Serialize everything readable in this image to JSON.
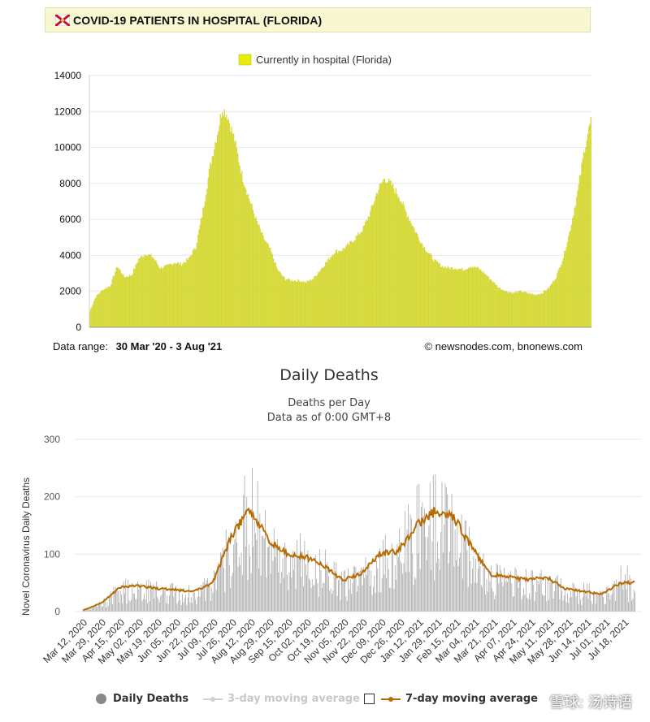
{
  "panel1": {
    "title": "COVID-19 PATIENTS IN HOSPITAL (FLORIDA)",
    "flag_icon": "florida-flag-icon",
    "date_range_label": "Data range:",
    "date_range_value": "30 Mar '20  -  3 Aug '21",
    "credit": "© newsnodes.com, bnonews.com",
    "bar_color": "#d8dc2a"
  },
  "panel2": {
    "title": "Daily Deaths",
    "subtitle1": "Deaths per Day",
    "subtitle2": "Data as of 0:00 GMT+8",
    "ylabel": "Novel Coronavirus Daily Deaths",
    "legend": {
      "daily": "Daily Deaths",
      "ma3": "3-day moving average",
      "ma7": "7-day moving average"
    },
    "watermark": "雪球: 汤诗语",
    "bar_color": "#a8a8a8",
    "line_color": "#b86b00"
  },
  "chart_data": [
    {
      "type": "bar",
      "legend": [
        "Currently in hospital (Florida)"
      ],
      "ylim": [
        0,
        14000
      ],
      "yticks": [
        0,
        2000,
        4000,
        6000,
        8000,
        10000,
        12000,
        14000
      ],
      "grid": true,
      "legend_position": "top-center",
      "x_start": "2020-03-30",
      "x_end": "2021-08-03",
      "series": [
        {
          "name": "Currently in hospital (Florida)",
          "points": [
            [
              "2020-03-30",
              900
            ],
            [
              "2020-04-05",
              1700
            ],
            [
              "2020-04-12",
              2100
            ],
            [
              "2020-04-19",
              2300
            ],
            [
              "2020-04-26",
              3400
            ],
            [
              "2020-05-03",
              2800
            ],
            [
              "2020-05-10",
              2900
            ],
            [
              "2020-05-17",
              3800
            ],
            [
              "2020-05-24",
              4100
            ],
            [
              "2020-05-31",
              3900
            ],
            [
              "2020-06-07",
              3300
            ],
            [
              "2020-06-14",
              3400
            ],
            [
              "2020-06-21",
              3600
            ],
            [
              "2020-06-28",
              3500
            ],
            [
              "2020-07-05",
              3800
            ],
            [
              "2020-07-12",
              4500
            ],
            [
              "2020-07-19",
              6500
            ],
            [
              "2020-07-26",
              9000
            ],
            [
              "2020-08-02",
              10800
            ],
            [
              "2020-08-07",
              12200
            ],
            [
              "2020-08-12",
              11800
            ],
            [
              "2020-08-19",
              10400
            ],
            [
              "2020-08-26",
              8500
            ],
            [
              "2020-09-02",
              7200
            ],
            [
              "2020-09-09",
              6000
            ],
            [
              "2020-09-16",
              5000
            ],
            [
              "2020-09-23",
              4300
            ],
            [
              "2020-09-30",
              3200
            ],
            [
              "2020-10-07",
              2700
            ],
            [
              "2020-10-14",
              2600
            ],
            [
              "2020-10-21",
              2600
            ],
            [
              "2020-10-28",
              2500
            ],
            [
              "2020-11-04",
              2700
            ],
            [
              "2020-11-11",
              3200
            ],
            [
              "2020-11-18",
              3700
            ],
            [
              "2020-11-25",
              4200
            ],
            [
              "2020-12-02",
              4300
            ],
            [
              "2020-12-09",
              4600
            ],
            [
              "2020-12-16",
              5000
            ],
            [
              "2020-12-23",
              5500
            ],
            [
              "2020-12-30",
              6400
            ],
            [
              "2021-01-06",
              7600
            ],
            [
              "2021-01-13",
              8300
            ],
            [
              "2021-01-20",
              7900
            ],
            [
              "2021-01-27",
              7300
            ],
            [
              "2021-02-03",
              6400
            ],
            [
              "2021-02-10",
              5600
            ],
            [
              "2021-02-17",
              4800
            ],
            [
              "2021-02-24",
              4200
            ],
            [
              "2021-03-03",
              3700
            ],
            [
              "2021-03-10",
              3400
            ],
            [
              "2021-03-17",
              3300
            ],
            [
              "2021-03-24",
              3300
            ],
            [
              "2021-03-31",
              3200
            ],
            [
              "2021-04-07",
              3400
            ],
            [
              "2021-04-14",
              3300
            ],
            [
              "2021-04-21",
              3000
            ],
            [
              "2021-04-28",
              2600
            ],
            [
              "2021-05-05",
              2200
            ],
            [
              "2021-05-12",
              2000
            ],
            [
              "2021-05-19",
              1900
            ],
            [
              "2021-05-26",
              2000
            ],
            [
              "2021-06-02",
              1900
            ],
            [
              "2021-06-09",
              1800
            ],
            [
              "2021-06-16",
              1900
            ],
            [
              "2021-06-23",
              2200
            ],
            [
              "2021-06-30",
              2800
            ],
            [
              "2021-07-07",
              3900
            ],
            [
              "2021-07-14",
              5500
            ],
            [
              "2021-07-21",
              7500
            ],
            [
              "2021-07-28",
              10000
            ],
            [
              "2021-08-03",
              11500
            ]
          ]
        }
      ]
    },
    {
      "type": "bar",
      "title": "Daily Deaths",
      "subtitle": "Deaths per Day",
      "ylabel": "Novel Coronavirus Daily Deaths",
      "ylim": [
        0,
        300
      ],
      "yticks": [
        0,
        100,
        200,
        300
      ],
      "grid": true,
      "legend_position": "bottom",
      "categories": [
        "Mar 12, 2020",
        "Mar 29, 2020",
        "Apr 15, 2020",
        "May 02, 2020",
        "May 19, 2020",
        "Jun 05, 2020",
        "Jun 22, 2020",
        "Jul 09, 2020",
        "Jul 26, 2020",
        "Aug 12, 2020",
        "Aug 29, 2020",
        "Sep 15, 2020",
        "Oct 02, 2020",
        "Oct 19, 2020",
        "Nov 05, 2020",
        "Nov 22, 2020",
        "Dec 09, 2020",
        "Dec 26, 2020",
        "Jan 12, 2021",
        "Jan 29, 2021",
        "Feb 15, 2021",
        "Mar 04, 2021",
        "Mar 21, 2021",
        "Apr 07, 2021",
        "Apr 24, 2021",
        "May 11, 2021",
        "May 28, 2021",
        "Jun 14, 2021",
        "Jul 01, 2021",
        "Jul 18, 2021"
      ],
      "series": [
        {
          "name": "7-day moving average",
          "x": [
            "Mar 12, 2020",
            "Mar 29, 2020",
            "Apr 15, 2020",
            "May 02, 2020",
            "May 19, 2020",
            "Jun 05, 2020",
            "Jun 22, 2020",
            "Jul 09, 2020",
            "Jul 26, 2020",
            "Aug 12, 2020",
            "Aug 29, 2020",
            "Sep 15, 2020",
            "Oct 02, 2020",
            "Oct 19, 2020",
            "Nov 05, 2020",
            "Nov 22, 2020",
            "Dec 09, 2020",
            "Dec 26, 2020",
            "Jan 12, 2021",
            "Jan 29, 2021",
            "Feb 15, 2021",
            "Mar 04, 2021",
            "Mar 21, 2021",
            "Apr 07, 2021",
            "Apr 24, 2021",
            "May 11, 2021",
            "May 28, 2021",
            "Jun 14, 2021",
            "Jul 01, 2021",
            "Jul 18, 2021"
          ],
          "values": [
            2,
            15,
            42,
            45,
            40,
            38,
            35,
            50,
            130,
            180,
            125,
            100,
            95,
            80,
            55,
            65,
            100,
            105,
            150,
            175,
            165,
            110,
            65,
            60,
            55,
            60,
            40,
            35,
            30,
            50
          ]
        },
        {
          "name": "Daily Deaths",
          "x": [
            "Mar 12, 2020",
            "Mar 29, 2020",
            "Apr 15, 2020",
            "May 02, 2020",
            "May 19, 2020",
            "Jun 05, 2020",
            "Jun 22, 2020",
            "Jul 09, 2020",
            "Jul 26, 2020",
            "Aug 12, 2020",
            "Aug 29, 2020",
            "Sep 15, 2020",
            "Oct 02, 2020",
            "Oct 19, 2020",
            "Nov 05, 2020",
            "Nov 22, 2020",
            "Dec 09, 2020",
            "Dec 26, 2020",
            "Jan 12, 2021",
            "Jan 29, 2021",
            "Feb 15, 2021",
            "Mar 04, 2021",
            "Mar 21, 2021",
            "Apr 07, 2021",
            "Apr 24, 2021",
            "May 11, 2021",
            "May 28, 2021",
            "Jun 14, 2021",
            "Jul 01, 2021",
            "Jul 18, 2021"
          ],
          "values": [
            2,
            20,
            50,
            55,
            45,
            45,
            45,
            70,
            180,
            260,
            180,
            150,
            130,
            110,
            80,
            100,
            140,
            150,
            220,
            240,
            200,
            130,
            80,
            75,
            70,
            75,
            55,
            50,
            45,
            80
          ]
        }
      ]
    }
  ]
}
